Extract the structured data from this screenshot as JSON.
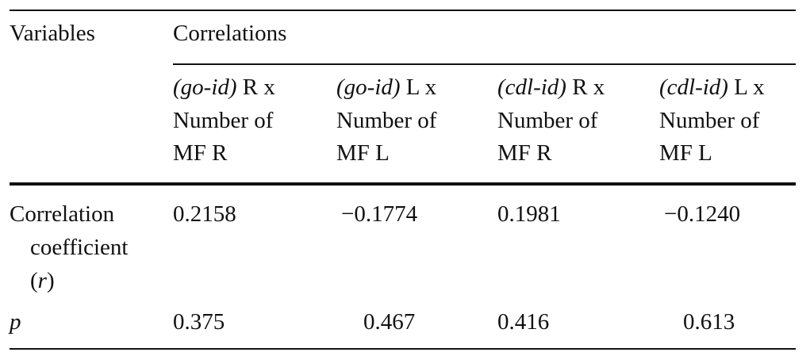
{
  "header": {
    "variables": "Variables",
    "group": "Correlations",
    "columns": [
      {
        "italic": "(go-id)",
        "lines": [
          "R x",
          "Number of",
          "MF R"
        ]
      },
      {
        "italic": "(go-id)",
        "lines": [
          "L x",
          "Number of",
          "MF L"
        ]
      },
      {
        "italic": "(cdl-id)",
        "lines": [
          "R x",
          "Number of",
          "MF R"
        ]
      },
      {
        "italic": "(cdl-id)",
        "lines": [
          "L x",
          "Number of",
          "MF L"
        ]
      }
    ]
  },
  "rows": [
    {
      "label": [
        "Correlation",
        "coefficient",
        "(",
        "r",
        ")"
      ],
      "values": [
        "0.2158",
        "−0.1774",
        "0.1981",
        "−0.1240"
      ]
    },
    {
      "label": [
        "p"
      ],
      "values": [
        "0.375",
        "0.467",
        "0.416",
        "0.613"
      ]
    }
  ]
}
